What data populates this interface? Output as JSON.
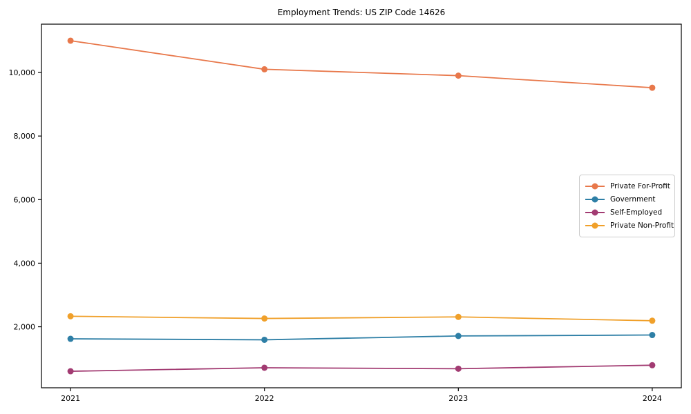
{
  "chart_data": {
    "type": "line",
    "title": "Employment Trends: US ZIP Code 14626",
    "x": [
      2021,
      2022,
      2023,
      2024
    ],
    "xtick_labels": [
      "2021",
      "2022",
      "2023",
      "2024"
    ],
    "yticks": [
      2000,
      4000,
      6000,
      8000,
      10000
    ],
    "ytick_labels": [
      "2,000",
      "4,000",
      "6,000",
      "8,000",
      "10,000"
    ],
    "xlim": [
      2020.85,
      2024.15
    ],
    "ylim": [
      80,
      11520
    ],
    "grid": false,
    "legend_position": "center right",
    "marker": "circle",
    "axis_color": "#000000",
    "series": [
      {
        "name": "Private For-Profit",
        "color": "#e8784b",
        "values": [
          11000,
          10100,
          9900,
          9520
        ]
      },
      {
        "name": "Government",
        "color": "#2e7fa6",
        "values": [
          1620,
          1590,
          1710,
          1740
        ]
      },
      {
        "name": "Self-Employed",
        "color": "#a23b72",
        "values": [
          600,
          710,
          680,
          790
        ]
      },
      {
        "name": "Private Non-Profit",
        "color": "#f0a02a",
        "values": [
          2330,
          2260,
          2310,
          2190
        ]
      }
    ]
  }
}
